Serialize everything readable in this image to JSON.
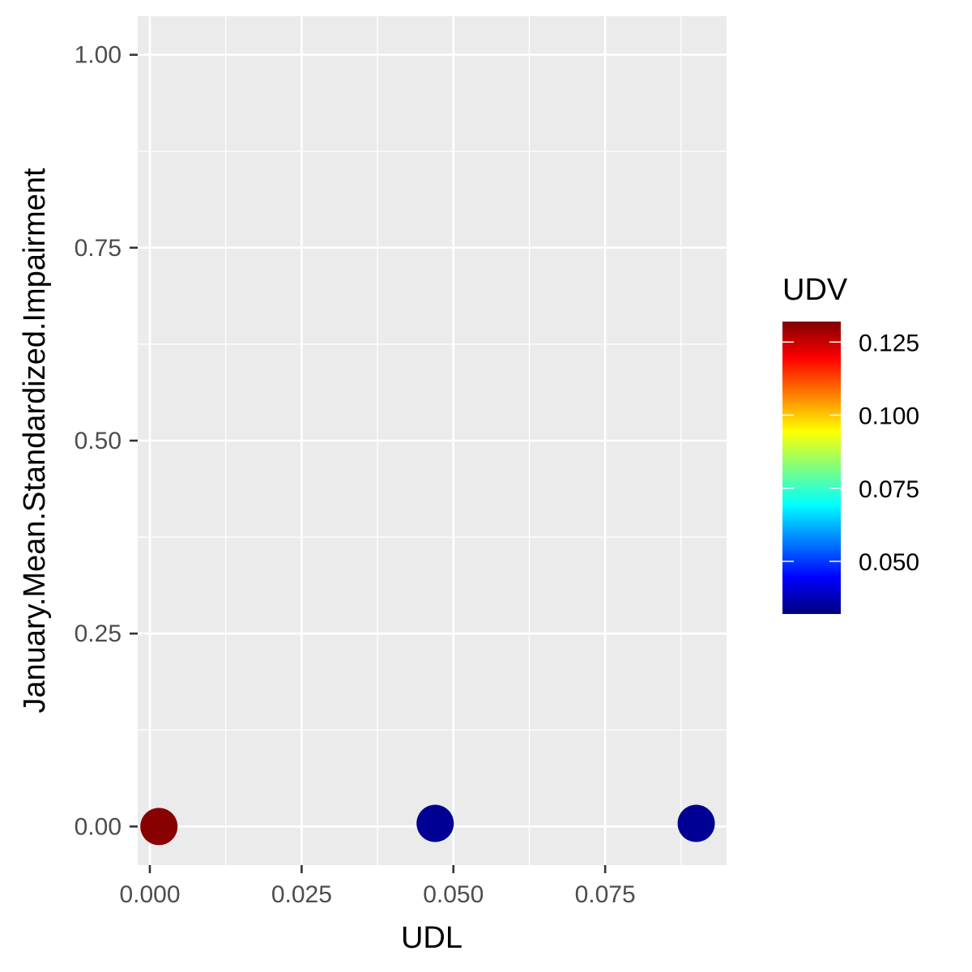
{
  "chart_data": {
    "type": "scatter",
    "xlabel": "UDL",
    "ylabel": "January.Mean.Standardized.Impairment",
    "xlim": [
      -0.002,
      0.095
    ],
    "ylim": [
      -0.05,
      1.05
    ],
    "x_ticks": [
      0.0,
      0.025,
      0.05,
      0.075
    ],
    "x_tick_labels": [
      "0.000",
      "0.025",
      "0.050",
      "0.075"
    ],
    "y_ticks": [
      0.0,
      0.25,
      0.5,
      0.75,
      1.0
    ],
    "y_tick_labels": [
      "0.00",
      "0.25",
      "0.50",
      "0.75",
      "1.00"
    ],
    "grid": true,
    "panel_background": "#ebebeb",
    "grid_color": "#ffffff",
    "points": [
      {
        "x": 0.0015,
        "y": 0.0,
        "udv": 0.131
      },
      {
        "x": 0.047,
        "y": 0.004,
        "udv": 0.034
      },
      {
        "x": 0.09,
        "y": 0.004,
        "udv": 0.034
      }
    ],
    "legend": {
      "title": "UDV",
      "placement": "right",
      "min": 0.032,
      "max": 0.132,
      "ticks": [
        0.125,
        0.1,
        0.075,
        0.05
      ],
      "tick_labels": [
        "0.125",
        "0.100",
        "0.075",
        "0.050"
      ],
      "colors": [
        "#00007f",
        "#0000ff",
        "#007fff",
        "#00ffff",
        "#7fff7f",
        "#ffff00",
        "#ff7f00",
        "#ff0000",
        "#7f0000"
      ]
    }
  }
}
